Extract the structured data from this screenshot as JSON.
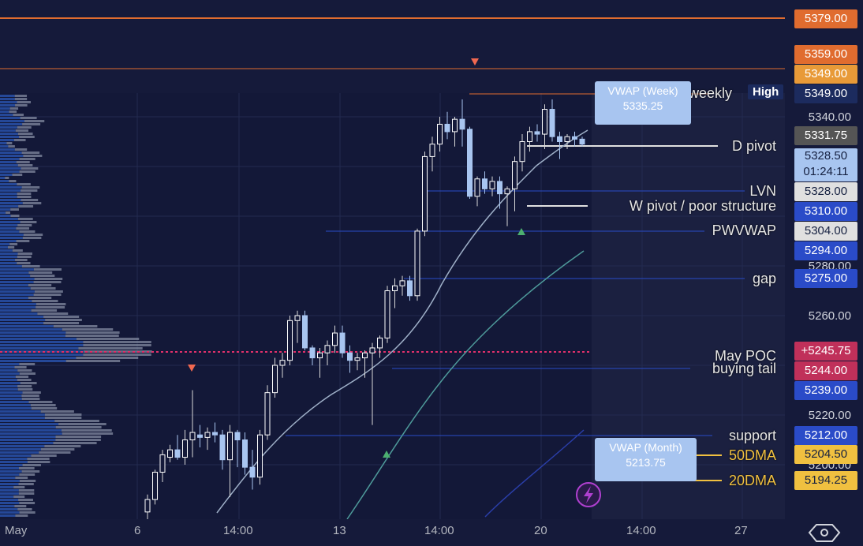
{
  "price_scale": {
    "labels": [
      {
        "price": 5379.0,
        "text": "5379.00",
        "color": "#e06c2f",
        "text_color": "#ffffff"
      },
      {
        "price": 5359.0,
        "text": "5359.00",
        "color": "#e06c2f",
        "text_color": "#ffffff"
      },
      {
        "price": 5349.0,
        "text": "5349.00",
        "color": "#e89a38",
        "text_color": "#ffffff",
        "row": "upper"
      },
      {
        "price": 5349.0,
        "text": "5349.00",
        "color": "#1c2b5e",
        "text_color": "#ffffff",
        "row": "lower"
      },
      {
        "price": 5331.75,
        "text": "5331.75",
        "color": "#555555",
        "text_color": "#ffffff"
      },
      {
        "price": 5328.5,
        "text": "5328.50",
        "color": "#a8c5f0",
        "text_color": "#152040",
        "sub": "01:24:11"
      },
      {
        "price": 5328.0,
        "text": "5328.00",
        "color": "#e0e0e0",
        "text_color": "#152040"
      },
      {
        "price": 5310.0,
        "text": "5310.00",
        "color": "#2a4bc8",
        "text_color": "#ffffff"
      },
      {
        "price": 5304.0,
        "text": "5304.00",
        "color": "#e0e0e0",
        "text_color": "#152040"
      },
      {
        "price": 5294.0,
        "text": "5294.00",
        "color": "#2a4bc8",
        "text_color": "#ffffff"
      },
      {
        "price": 5275.0,
        "text": "5275.00",
        "color": "#2a4bc8",
        "text_color": "#ffffff"
      },
      {
        "price": 5245.75,
        "text": "+5245.75",
        "color": "#c0305a",
        "text_color": "#ffffff"
      },
      {
        "price": 5244.0,
        "text": "5244.00",
        "color": "#c0305a",
        "text_color": "#ffffff"
      },
      {
        "price": 5239.0,
        "text": "5239.00",
        "color": "#2a4bc8",
        "text_color": "#ffffff"
      },
      {
        "price": 5212.0,
        "text": "5212.00",
        "color": "#2a4bc8",
        "text_color": "#ffffff"
      },
      {
        "price": 5204.5,
        "text": "5204.50",
        "color": "#f0c040",
        "text_color": "#152040"
      },
      {
        "price": 5194.25,
        "text": "5194.25",
        "color": "#f0c040",
        "text_color": "#152040"
      }
    ],
    "ticks": [
      "5340.00",
      "5280.00",
      "5260.00",
      "5220.00",
      "5200.00"
    ]
  },
  "annotations": {
    "weekly": "weekly",
    "high_tag": "High",
    "d_pivot": "D pivot",
    "lvn": "LVN",
    "w_pivot": "W pivot / poor structure",
    "pwvwap": "PWVWAP",
    "gap": "gap",
    "may_poc": "May POC",
    "buying_tail": "buying tail",
    "support": "support",
    "dma50": "50DMA",
    "dma20": "20DMA"
  },
  "vwap_week": {
    "title": "VWAP (Week)",
    "value": "5335.25"
  },
  "vwap_month": {
    "title": "VWAP (Month)",
    "value": "5213.75"
  },
  "time_axis": [
    "May",
    "6",
    "14:00",
    "13",
    "14:00",
    "20",
    "14:00",
    "27"
  ],
  "colors": {
    "background": "#151a3a",
    "candle_up": "#ffffff",
    "candle_down": "#a8c5f0",
    "level_orange": "#e06c2f",
    "level_blue": "#2a4bc8",
    "poc": "#e0306a",
    "gold": "#f0c040"
  },
  "icons": [
    "lightning-icon",
    "settings-hexagon-icon"
  ],
  "chart_data": {
    "type": "candlestick",
    "x": [
      "May",
      "6",
      "14:00",
      "13",
      "14:00",
      "20",
      "14:00",
      "27"
    ],
    "candles": [
      [
        5181,
        5188,
        5178,
        5186
      ],
      [
        5186,
        5198,
        5184,
        5197
      ],
      [
        5197,
        5206,
        5193,
        5204
      ],
      [
        5203,
        5208,
        5201,
        5206
      ],
      [
        5206,
        5212,
        5202,
        5203
      ],
      [
        5203,
        5214,
        5200,
        5210
      ],
      [
        5210,
        5230,
        5203,
        5213
      ],
      [
        5212,
        5216,
        5207,
        5211
      ],
      [
        5211,
        5215,
        5206,
        5213
      ],
      [
        5213,
        5217,
        5209,
        5212
      ],
      [
        5212,
        5214,
        5198,
        5202
      ],
      [
        5202,
        5216,
        5187,
        5213
      ],
      [
        5213,
        5214,
        5199,
        5210
      ],
      [
        5210,
        5213,
        5196,
        5199
      ],
      [
        5199,
        5206,
        5190,
        5195
      ],
      [
        5195,
        5214,
        5192,
        5212
      ],
      [
        5212,
        5232,
        5210,
        5229
      ],
      [
        5229,
        5243,
        5227,
        5240
      ],
      [
        5240,
        5245,
        5235,
        5242
      ],
      [
        5242,
        5260,
        5240,
        5258
      ],
      [
        5258,
        5262,
        5249,
        5260
      ],
      [
        5260,
        5262,
        5246,
        5247
      ],
      [
        5247,
        5248,
        5240,
        5243
      ],
      [
        5243,
        5247,
        5235,
        5245
      ],
      [
        5245,
        5250,
        5240,
        5248
      ],
      [
        5248,
        5256,
        5245,
        5253
      ],
      [
        5253,
        5256,
        5243,
        5245
      ],
      [
        5245,
        5248,
        5237,
        5242
      ],
      [
        5242,
        5245,
        5238,
        5243
      ],
      [
        5243,
        5246,
        5235,
        5245
      ],
      [
        5245,
        5249,
        5216,
        5247
      ],
      [
        5247,
        5252,
        5243,
        5251
      ],
      [
        5251,
        5272,
        5249,
        5270
      ],
      [
        5270,
        5275,
        5263,
        5272
      ],
      [
        5272,
        5276,
        5268,
        5274
      ],
      [
        5274,
        5276,
        5266,
        5268
      ],
      [
        5268,
        5295,
        5266,
        5294
      ],
      [
        5294,
        5326,
        5292,
        5324
      ],
      [
        5324,
        5332,
        5318,
        5329
      ],
      [
        5329,
        5340,
        5326,
        5337
      ],
      [
        5337,
        5342,
        5331,
        5334
      ],
      [
        5334,
        5340,
        5328,
        5339
      ],
      [
        5339,
        5347,
        5328,
        5335
      ],
      [
        5335,
        5336,
        5307,
        5308
      ],
      [
        5308,
        5316,
        5304,
        5315
      ],
      [
        5315,
        5318,
        5309,
        5311
      ],
      [
        5311,
        5316,
        5308,
        5314
      ],
      [
        5314,
        5316,
        5303,
        5309
      ],
      [
        5309,
        5312,
        5296,
        5311
      ],
      [
        5311,
        5324,
        5302,
        5322
      ],
      [
        5322,
        5333,
        5318,
        5330
      ],
      [
        5330,
        5336,
        5326,
        5334
      ],
      [
        5334,
        5337,
        5330,
        5333
      ],
      [
        5333,
        5345,
        5327,
        5343
      ],
      [
        5343,
        5347,
        5330,
        5332
      ],
      [
        5332,
        5334,
        5323,
        5330
      ],
      [
        5330,
        5333,
        5327,
        5332
      ],
      [
        5332,
        5334,
        5328,
        5331
      ],
      [
        5331,
        5332,
        5328,
        5329
      ]
    ],
    "ylim": [
      5170,
      5390
    ]
  }
}
